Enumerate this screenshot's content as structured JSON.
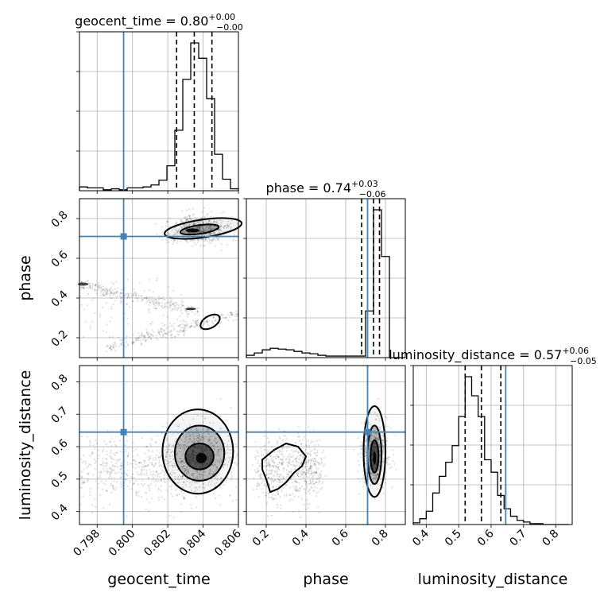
{
  "chart_data": {
    "type": "corner",
    "parameters": [
      "geocent_time",
      "phase",
      "luminosity_distance"
    ],
    "truths": {
      "geocent_time": 0.7995,
      "phase": 0.71,
      "luminosity_distance": 0.645
    },
    "titles": [
      {
        "param": "geocent_time",
        "label": "geocent_time",
        "median": "0.80",
        "plus": "+0.00",
        "minus": "−0.00"
      },
      {
        "param": "phase",
        "label": "phase",
        "median": "0.74",
        "plus": "+0.03",
        "minus": "−0.06"
      },
      {
        "param": "luminosity_distance",
        "label": "luminosity_distance",
        "median": "0.57",
        "plus": "+0.06",
        "minus": "−0.05"
      }
    ],
    "axes": {
      "geocent_time": {
        "range": [
          0.797,
          0.806
        ],
        "ticks": [
          0.798,
          0.8,
          0.802,
          0.804,
          0.806
        ],
        "tick_labels": [
          "0.798",
          "0.800",
          "0.802",
          "0.804",
          "0.806"
        ]
      },
      "phase": {
        "range": [
          0.1,
          0.9
        ],
        "ticks": [
          0.2,
          0.4,
          0.6,
          0.8
        ],
        "tick_labels": [
          "0.2",
          "0.4",
          "0.6",
          "0.8"
        ]
      },
      "luminosity_distance": {
        "range": [
          0.36,
          0.85
        ],
        "ticks": [
          0.4,
          0.5,
          0.6,
          0.7,
          0.8
        ],
        "tick_labels": [
          "0.4",
          "0.5",
          "0.6",
          "0.7",
          "0.8"
        ]
      }
    },
    "quantiles": {
      "geocent_time": [
        0.8025,
        0.8035,
        0.8045
      ],
      "phase": [
        0.68,
        0.74,
        0.77
      ],
      "luminosity_distance": [
        0.52,
        0.57,
        0.63
      ]
    },
    "histograms": {
      "geocent_time": {
        "x0": 0.797,
        "bin_width": 0.00045,
        "counts": [
          4,
          3,
          3,
          1,
          2,
          1,
          3,
          3,
          4,
          6,
          11,
          26,
          63,
          116,
          154,
          138,
          96,
          38,
          12,
          2
        ]
      },
      "phase": {
        "x0": 0.1,
        "bin_width": 0.04,
        "counts": [
          3,
          6,
          10,
          12,
          11,
          10,
          8,
          6,
          5,
          3,
          2,
          2,
          2,
          2,
          2,
          60,
          190,
          130,
          0,
          0
        ]
      },
      "luminosity_distance": {
        "x0": 0.36,
        "bin_width": 0.02,
        "counts": [
          2,
          7,
          16,
          38,
          58,
          75,
          95,
          130,
          178,
          155,
          130,
          78,
          63,
          35,
          19,
          10,
          5,
          3,
          1,
          1,
          0,
          0,
          0,
          0
        ]
      }
    },
    "grid": true
  }
}
